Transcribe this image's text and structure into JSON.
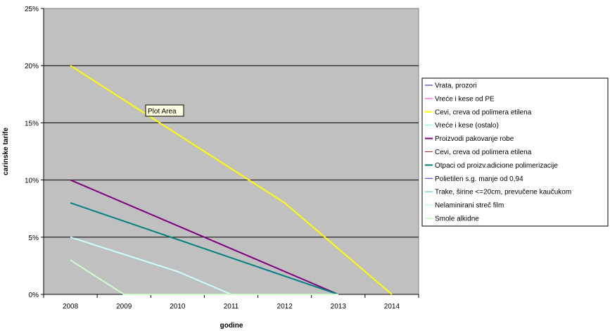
{
  "chart_data": {
    "type": "line",
    "title": "",
    "xlabel": "godine",
    "ylabel": "carinske tarife",
    "categories": [
      "2008",
      "2009",
      "2010",
      "2011",
      "2012",
      "2013",
      "2014"
    ],
    "ylim": [
      0,
      25
    ],
    "yticks": [
      "0%",
      "5%",
      "10%",
      "15%",
      "20%",
      "25%"
    ],
    "ytick_values": [
      0,
      5,
      10,
      15,
      20,
      25
    ],
    "grid": "horizontal",
    "plot_background": "#c0c0c0",
    "legend_position": "right",
    "tooltip": "Plot Area",
    "series": [
      {
        "name": "Vrata, prozori",
        "color": "#1a1a8c",
        "width": 1,
        "values": [
          null,
          null,
          null,
          null,
          null,
          null,
          null
        ]
      },
      {
        "name": "Vreće i kese od PE",
        "color": "#ff33cc",
        "width": 1,
        "values": [
          null,
          null,
          null,
          null,
          null,
          null,
          null
        ]
      },
      {
        "name": "Cevi, creva od polimera etilena",
        "color": "#ffff00",
        "width": 2,
        "values": [
          20,
          17,
          14,
          11,
          8,
          4,
          0
        ]
      },
      {
        "name": "Vreće i kese (ostalo)",
        "color": "#66ffff",
        "width": 1,
        "values": [
          null,
          null,
          null,
          null,
          null,
          null,
          null
        ]
      },
      {
        "name": "Proizvodi pakovanje robe",
        "color": "#800080",
        "width": 2,
        "values": [
          10,
          8,
          6,
          4,
          2,
          0,
          null
        ]
      },
      {
        "name": "Cevi, creva od polimera etilena",
        "color": "#a52a2a",
        "width": 1,
        "values": [
          null,
          null,
          null,
          null,
          null,
          null,
          null
        ]
      },
      {
        "name": "Otpaci od proizv.adicione polimerizacije",
        "color": "#008080",
        "width": 2,
        "values": [
          8,
          6.4,
          4.8,
          3.2,
          1.6,
          0,
          null
        ]
      },
      {
        "name": "Polietilen s.g. manje od 0,94",
        "color": "#3333cc",
        "width": 1,
        "values": [
          null,
          null,
          null,
          null,
          null,
          null,
          null
        ]
      },
      {
        "name": "Trake, širine <=20cm, prevučene kaučukom",
        "color": "#33cccc",
        "width": 1,
        "values": [
          null,
          null,
          null,
          null,
          null,
          null,
          null
        ]
      },
      {
        "name": "Nelaminirani streč film",
        "color": "#ccffff",
        "width": 2,
        "values": [
          5,
          3.5,
          2,
          0,
          0,
          0,
          null
        ]
      },
      {
        "name": "Smole alkidne",
        "color": "#ccffcc",
        "width": 2,
        "values": [
          3,
          0,
          0,
          0,
          0,
          0,
          null
        ]
      }
    ]
  }
}
